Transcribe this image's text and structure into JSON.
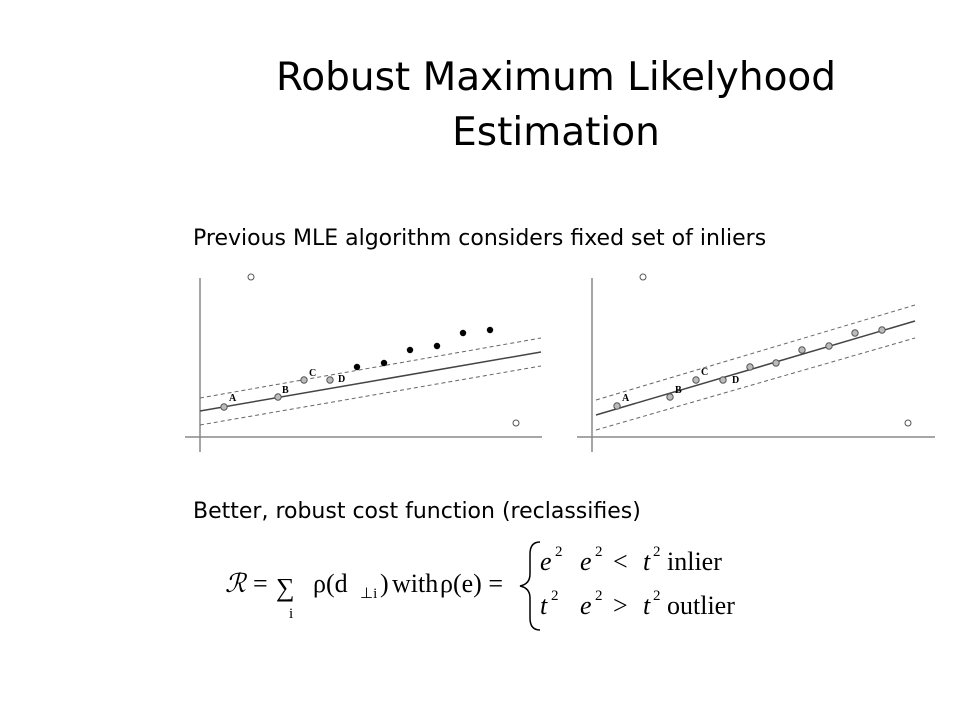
{
  "title": {
    "line1": "Robust Maximum Likelyhood",
    "line2": "Estimation"
  },
  "bullets": [
    "Previous MLE algorithm considers fixed set of inliers",
    "Better, robust cost function (reclassifies)"
  ],
  "figures": [
    {
      "labels": [
        "A",
        "B",
        "C",
        "D"
      ]
    },
    {
      "labels": [
        "A",
        "B",
        "C",
        "D"
      ]
    }
  ],
  "formula": {
    "lhs": "ℛ",
    "eq": "=",
    "sum": "∑",
    "index": "i",
    "rho": "ρ(d",
    "sub": "⊥i",
    "close": ")",
    "with": "with",
    "rho_e": "ρ(e) =",
    "cases": [
      {
        "base": "e",
        "exp": "2",
        "cond_base": "e",
        "cond_exp": "2",
        "op": "<",
        "t": "t",
        "t_exp": "2",
        "label": "inlier"
      },
      {
        "base": "t",
        "exp": "2",
        "cond_base": "e",
        "cond_exp": "2",
        "op": ">",
        "t": "t",
        "t_exp": "2",
        "label": "outlier"
      }
    ]
  }
}
